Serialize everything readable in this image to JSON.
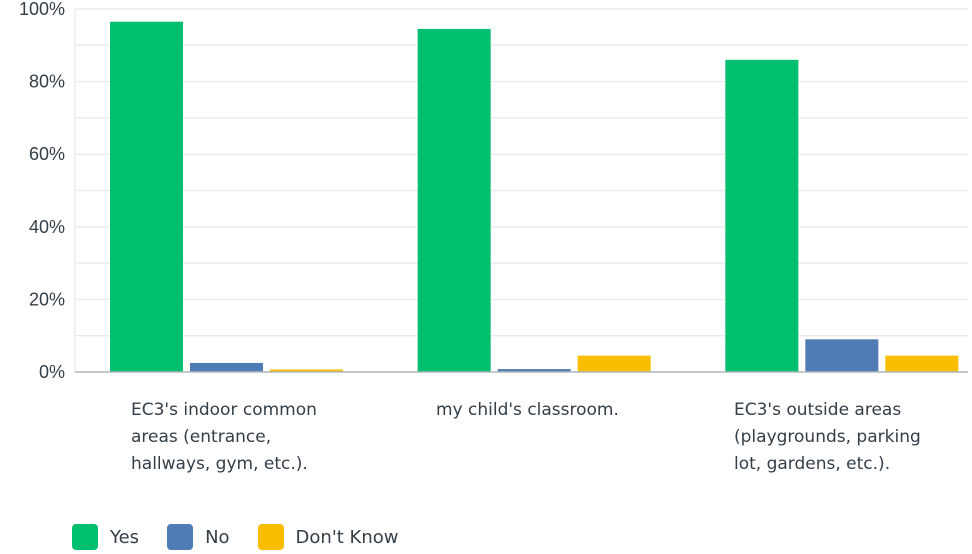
{
  "chart_data": {
    "type": "bar",
    "categories": [
      "EC3's indoor common areas (entrance, hallways, gym, etc.).",
      "my child's classroom.",
      "EC3's outside areas (playgrounds, parking lot, gardens, etc.)."
    ],
    "category_lines": [
      [
        "EC3's indoor common",
        "areas (entrance,",
        "hallways, gym, etc.)."
      ],
      [
        "my child's classroom."
      ],
      [
        "EC3's outside areas",
        "(playgrounds, parking",
        "lot, gardens, etc.)."
      ]
    ],
    "series": [
      {
        "name": "Yes",
        "color": "#00bf6f",
        "values": [
          96.5,
          94.5,
          86
        ]
      },
      {
        "name": "No",
        "color": "#507cb6",
        "values": [
          2.5,
          0.8,
          9
        ]
      },
      {
        "name": "Don't Know",
        "color": "#f9be00",
        "values": [
          0.7,
          4.5,
          4.5
        ]
      }
    ],
    "y_ticks": [
      "0%",
      "20%",
      "40%",
      "60%",
      "80%",
      "100%"
    ],
    "ylim": [
      0,
      100
    ],
    "grid": true,
    "legend": "bottom-left",
    "title": "",
    "xlabel": "",
    "ylabel": ""
  }
}
